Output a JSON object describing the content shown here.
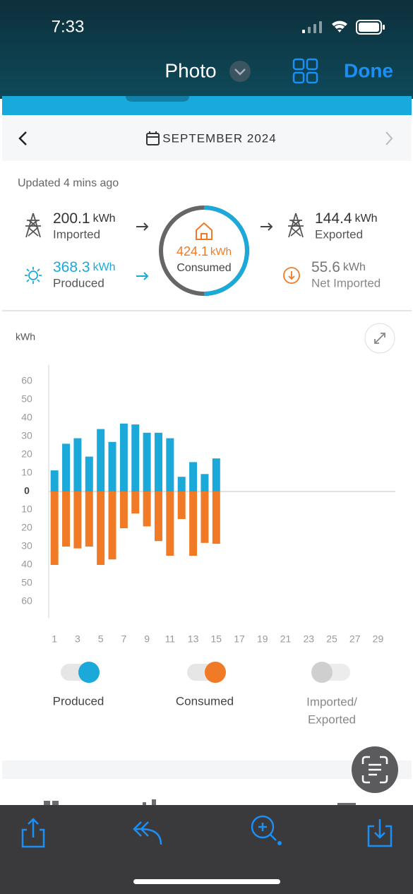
{
  "status_bar": {
    "time": "7:33"
  },
  "nav": {
    "title": "Photo",
    "done": "Done"
  },
  "header": {
    "month": "SEPTEMBER 2024"
  },
  "summary": {
    "updated": "Updated 4 mins ago",
    "imported": {
      "value": 200.1,
      "unit": "kWh",
      "label": "Imported"
    },
    "produced": {
      "value": 368.3,
      "unit": "kWh",
      "label": "Produced"
    },
    "consumed": {
      "value": 424.1,
      "unit": "kWh",
      "label": "Consumed"
    },
    "exported": {
      "value": 144.4,
      "unit": "kWh",
      "label": "Exported"
    },
    "net_imported": {
      "value": 55.6,
      "unit": "kWh",
      "label": "Net Imported"
    }
  },
  "chart_data": {
    "type": "bar",
    "ylabel": "kWh",
    "categories": [
      "1",
      null,
      "3",
      null,
      "5",
      null,
      "7",
      null,
      "9",
      null,
      "11",
      null,
      "13",
      null,
      "15",
      null,
      "17",
      null,
      "19",
      null,
      "21",
      null,
      "23",
      null,
      "25",
      null,
      "27",
      null,
      "29",
      null
    ],
    "series": [
      {
        "name": "Produced",
        "color": "#1ba9d9",
        "values": [
          11.5,
          26,
          29,
          19,
          34,
          27,
          37,
          36.5,
          32,
          32,
          29,
          8,
          16,
          9.5,
          18,
          null,
          null,
          null,
          null,
          null,
          null,
          null,
          null,
          null,
          null,
          null,
          null,
          null,
          null,
          null
        ]
      },
      {
        "name": "Consumed",
        "color": "#f07a26",
        "values": [
          -40,
          -30,
          -31,
          -30,
          -40,
          -37,
          -20,
          -12,
          -19,
          -27,
          -35,
          -15,
          -35,
          -28,
          -28.5,
          null,
          null,
          null,
          null,
          null,
          null,
          null,
          null,
          null,
          null,
          null,
          null,
          null,
          null,
          null
        ]
      }
    ],
    "ylim": [
      -69,
      69
    ],
    "yticks": [
      60,
      50,
      40,
      30,
      20,
      10,
      0,
      {
        "value": -10,
        "label": "10"
      },
      {
        "value": -20,
        "label": "20"
      },
      {
        "value": -30,
        "label": "30"
      },
      {
        "value": -40,
        "label": "40"
      },
      {
        "value": -50,
        "label": "50"
      },
      {
        "value": -60,
        "label": "60"
      }
    ],
    "grid": false
  },
  "toggles": {
    "inactive_lines": [
      "Imported/",
      "Exported"
    ]
  }
}
